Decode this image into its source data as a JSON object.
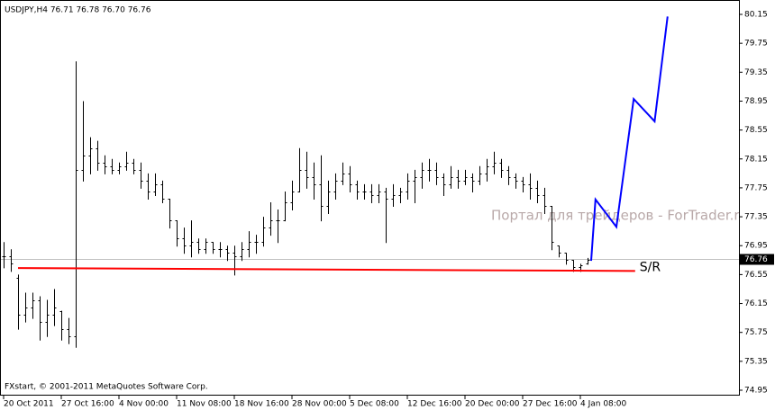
{
  "chart_data": {
    "type": "ohlc",
    "header": "USDJPY,H4  76.71 76.78 76.70 76.76",
    "watermark": "Портал для трейдеров - ForTrader.ru",
    "footer": "FXstart, © 2001-2011 MetaQuotes Software Corp.",
    "color": "#000000",
    "categories": [
      "20 Oct 2011",
      null,
      null,
      null,
      null,
      null,
      null,
      null,
      "27 Oct 16:00",
      null,
      null,
      null,
      null,
      null,
      null,
      null,
      "4 Nov 00:00",
      null,
      null,
      null,
      null,
      null,
      null,
      null,
      "11 Nov 08:00",
      null,
      null,
      null,
      null,
      null,
      null,
      null,
      "18 Nov 16:00",
      null,
      null,
      null,
      null,
      null,
      null,
      null,
      "28 Nov 00:00",
      null,
      null,
      null,
      null,
      null,
      null,
      null,
      "5 Dec 08:00",
      null,
      null,
      null,
      null,
      null,
      null,
      null,
      "12 Dec 16:00",
      null,
      null,
      null,
      null,
      null,
      null,
      null,
      "20 Dec 00:00",
      null,
      null,
      null,
      null,
      null,
      null,
      null,
      "27 Dec 16:00",
      null,
      null,
      null,
      null,
      null,
      null,
      null,
      "4 Jan 08:00",
      null
    ],
    "open": [
      76.8,
      76.8,
      76.5,
      76.0,
      76.1,
      76.2,
      75.9,
      76.0,
      76.05,
      75.8,
      75.7,
      78.0,
      78.2,
      78.3,
      78.1,
      78.05,
      78.0,
      78.05,
      78.1,
      78.0,
      77.85,
      77.7,
      77.8,
      77.6,
      77.3,
      77.05,
      76.95,
      77.0,
      76.9,
      77.0,
      76.9,
      76.9,
      76.85,
      76.8,
      76.9,
      77.0,
      77.0,
      77.2,
      77.3,
      77.3,
      77.55,
      77.7,
      78.0,
      77.9,
      77.8,
      77.5,
      77.7,
      77.85,
      77.95,
      77.8,
      77.7,
      77.7,
      77.65,
      77.7,
      77.6,
      77.65,
      77.7,
      77.85,
      77.9,
      78.0,
      78.0,
      77.9,
      77.8,
      77.9,
      77.85,
      77.9,
      77.85,
      77.95,
      78.05,
      78.1,
      78.0,
      77.9,
      77.85,
      77.8,
      77.75,
      77.65,
      77.5,
      76.95,
      76.85,
      76.75,
      76.65,
      76.71
    ],
    "high": [
      77.0,
      76.9,
      76.55,
      76.3,
      76.3,
      76.25,
      76.2,
      76.35,
      76.05,
      75.95,
      79.5,
      78.95,
      78.45,
      78.4,
      78.2,
      78.15,
      78.1,
      78.25,
      78.15,
      78.1,
      77.95,
      77.95,
      77.85,
      77.6,
      77.3,
      77.2,
      77.3,
      77.05,
      77.05,
      77.0,
      77.0,
      76.95,
      76.95,
      77.0,
      77.15,
      77.1,
      77.35,
      77.55,
      77.45,
      77.7,
      77.85,
      78.3,
      78.25,
      78.1,
      78.2,
      77.85,
      77.95,
      78.1,
      78.05,
      77.85,
      77.8,
      77.8,
      77.8,
      77.75,
      77.8,
      77.75,
      77.95,
      78.0,
      78.1,
      78.15,
      78.1,
      77.95,
      78.05,
      78.0,
      78.0,
      77.95,
      78.05,
      78.15,
      78.25,
      78.15,
      78.05,
      77.95,
      77.9,
      77.95,
      77.85,
      77.75,
      77.5,
      76.95,
      76.85,
      76.75,
      76.7,
      76.78
    ],
    "low": [
      76.65,
      76.6,
      75.8,
      75.9,
      75.95,
      75.65,
      75.7,
      75.85,
      75.65,
      75.6,
      75.55,
      77.85,
      77.95,
      78.0,
      77.95,
      77.95,
      77.95,
      78.0,
      77.95,
      77.75,
      77.6,
      77.65,
      77.55,
      77.2,
      76.95,
      76.85,
      76.8,
      76.85,
      76.85,
      76.85,
      76.8,
      76.75,
      76.55,
      76.75,
      76.8,
      76.85,
      76.95,
      77.1,
      77.0,
      77.3,
      77.45,
      77.7,
      77.75,
      77.6,
      77.3,
      77.4,
      77.6,
      77.8,
      77.7,
      77.6,
      77.6,
      77.55,
      77.55,
      77.0,
      77.5,
      77.55,
      77.6,
      77.55,
      77.75,
      77.85,
      77.8,
      77.65,
      77.75,
      77.75,
      77.8,
      77.7,
      77.8,
      77.85,
      77.95,
      77.9,
      77.8,
      77.75,
      77.7,
      77.6,
      77.55,
      77.4,
      76.9,
      76.8,
      76.7,
      76.6,
      76.6,
      76.7
    ],
    "close": [
      76.8,
      76.7,
      76.0,
      76.1,
      76.2,
      75.9,
      76.0,
      76.1,
      75.8,
      75.7,
      78.0,
      78.2,
      78.3,
      78.1,
      78.05,
      78.0,
      78.05,
      78.1,
      78.0,
      77.85,
      77.7,
      77.8,
      77.6,
      77.3,
      77.05,
      76.95,
      77.0,
      76.9,
      77.0,
      76.9,
      76.9,
      76.85,
      76.8,
      76.9,
      77.0,
      77.0,
      77.2,
      77.3,
      77.3,
      77.55,
      77.7,
      78.0,
      77.9,
      77.8,
      77.5,
      77.7,
      77.85,
      77.95,
      77.8,
      77.7,
      77.7,
      77.65,
      77.7,
      77.6,
      77.65,
      77.7,
      77.85,
      77.9,
      78.0,
      78.0,
      77.9,
      77.8,
      77.9,
      77.85,
      77.9,
      77.85,
      77.95,
      78.05,
      78.1,
      78.0,
      77.9,
      77.85,
      77.8,
      77.75,
      77.65,
      77.5,
      77.0,
      76.85,
      76.75,
      76.65,
      76.68,
      76.76
    ],
    "current_price": 76.76,
    "forecast": {
      "color": "#0000ff",
      "x": [
        81.5,
        82.1,
        85,
        87.4,
        90.3,
        92.1
      ],
      "values": [
        76.74,
        77.59,
        77.21,
        78.98,
        78.67,
        80.12
      ]
    },
    "sr_line": {
      "label": "S/R",
      "color": "#ff0000",
      "x": [
        2,
        87.6
      ],
      "values": [
        76.64,
        76.6
      ]
    },
    "ylim": [
      74.95,
      80.15
    ],
    "yticks": [
      80.15,
      79.75,
      79.35,
      78.95,
      78.55,
      78.15,
      77.75,
      77.35,
      76.95,
      76.55,
      76.15,
      75.75,
      75.35,
      74.95
    ]
  }
}
